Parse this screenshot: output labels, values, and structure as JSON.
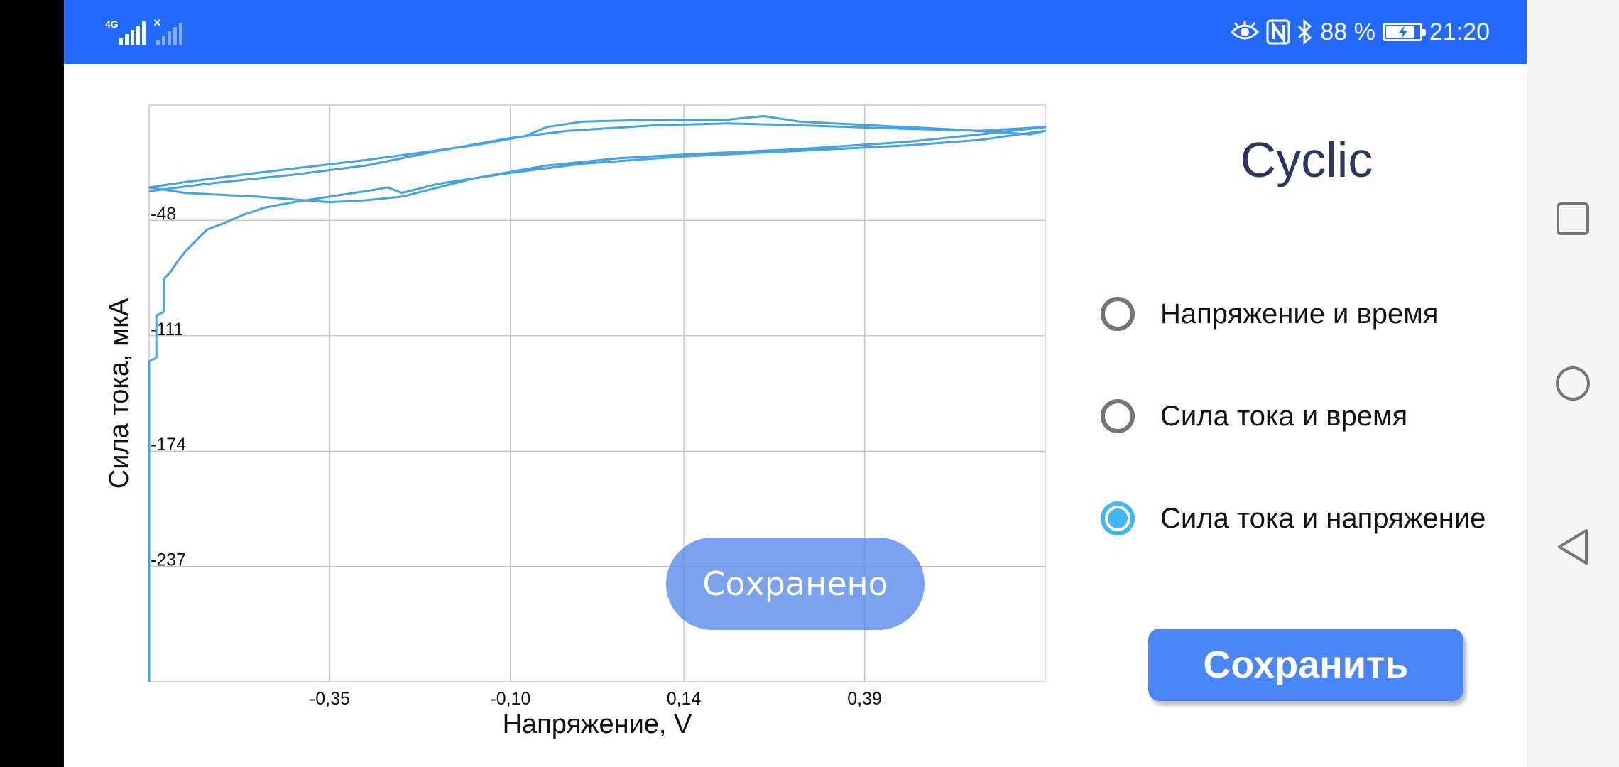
{
  "status_bar": {
    "network_type": "4G",
    "battery_percent": "88 %",
    "battery_level": 0.88,
    "time": "21:20",
    "icons": [
      "eye-icon",
      "nfc-icon",
      "bluetooth-icon",
      "battery-charging-icon"
    ]
  },
  "screen": {
    "title": "Cyclic",
    "options": [
      {
        "label": "Напряжение и время",
        "selected": false
      },
      {
        "label": "Сила тока и время",
        "selected": false
      },
      {
        "label": "Сила тока и напряжение",
        "selected": true
      }
    ],
    "save_label": "Сохранить",
    "toast": "Сохранено"
  },
  "colors": {
    "status_bar": "#2369fc",
    "accent": "#42b7f5",
    "button": "#4a86f5",
    "series": "#46a2e3",
    "title": "#2c3760"
  },
  "navigation": {
    "icons": [
      "recent-apps-icon",
      "home-icon",
      "back-icon"
    ]
  },
  "chart_data": {
    "type": "line",
    "title": "",
    "xlabel": "Напряжение, V",
    "ylabel": "Сила тока, мкА",
    "x_ticks": [
      "-0,35",
      "-0,10",
      "0,14",
      "0,39"
    ],
    "y_ticks": [
      "-48",
      "-111",
      "-174",
      "-237"
    ],
    "xlim": [
      -0.6,
      0.64
    ],
    "ylim": [
      -300,
      15
    ],
    "grid": true,
    "series": [
      {
        "name": "",
        "points": [
          [
            -0.6,
            -300
          ],
          [
            -0.6,
            -125
          ],
          [
            -0.59,
            -123
          ],
          [
            -0.59,
            -100
          ],
          [
            -0.58,
            -98
          ],
          [
            -0.58,
            -80
          ],
          [
            -0.57,
            -76
          ],
          [
            -0.56,
            -70
          ],
          [
            -0.55,
            -65
          ],
          [
            -0.54,
            -61
          ],
          [
            -0.53,
            -57
          ],
          [
            -0.52,
            -53
          ],
          [
            -0.5,
            -50
          ],
          [
            -0.47,
            -45
          ],
          [
            -0.44,
            -41
          ],
          [
            -0.4,
            -38
          ],
          [
            -0.35,
            -35
          ],
          [
            -0.3,
            -32
          ],
          [
            -0.27,
            -30
          ],
          [
            -0.25,
            -33
          ],
          [
            -0.2,
            -28
          ],
          [
            -0.1,
            -22
          ],
          [
            0.0,
            -17
          ],
          [
            0.14,
            -13
          ],
          [
            0.3,
            -10
          ],
          [
            0.45,
            -7
          ],
          [
            0.55,
            -4
          ],
          [
            0.64,
            1
          ],
          [
            0.62,
            -1
          ],
          [
            0.5,
            2
          ],
          [
            0.4,
            4
          ],
          [
            0.3,
            6
          ],
          [
            0.25,
            9
          ],
          [
            0.2,
            7
          ],
          [
            0.1,
            7
          ],
          [
            0.0,
            6
          ],
          [
            -0.05,
            3
          ],
          [
            -0.08,
            -2
          ],
          [
            -0.15,
            -7
          ],
          [
            -0.3,
            -15
          ],
          [
            -0.45,
            -22
          ],
          [
            -0.55,
            -27
          ],
          [
            -0.6,
            -30
          ],
          [
            -0.55,
            -33
          ],
          [
            -0.45,
            -35
          ],
          [
            -0.35,
            -38
          ],
          [
            -0.3,
            -37
          ],
          [
            -0.25,
            -35
          ],
          [
            -0.15,
            -25
          ],
          [
            -0.05,
            -18
          ],
          [
            0.05,
            -14
          ],
          [
            0.14,
            -12
          ],
          [
            0.3,
            -9
          ],
          [
            0.45,
            -5
          ],
          [
            0.55,
            -1
          ],
          [
            0.64,
            3
          ],
          [
            0.55,
            1
          ],
          [
            0.45,
            2
          ],
          [
            0.3,
            4
          ],
          [
            0.2,
            5
          ],
          [
            0.1,
            4
          ],
          [
            -0.02,
            1
          ],
          [
            -0.1,
            -3
          ],
          [
            -0.2,
            -10
          ],
          [
            -0.3,
            -18
          ],
          [
            -0.4,
            -23
          ],
          [
            -0.52,
            -28
          ],
          [
            -0.6,
            -32
          ]
        ]
      }
    ]
  }
}
